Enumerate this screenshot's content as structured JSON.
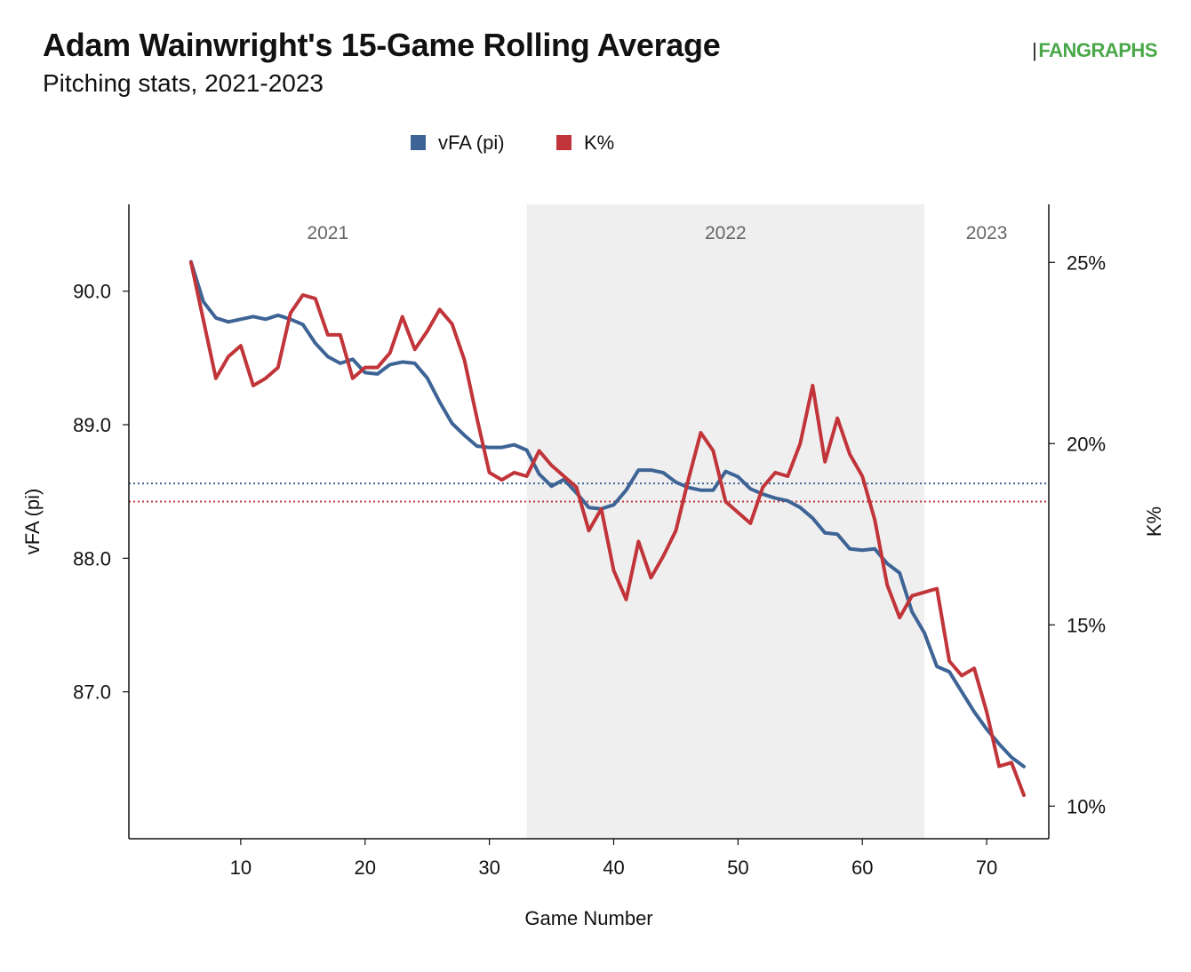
{
  "header": {
    "title": "Adam Wainwright's 15-Game Rolling Average",
    "subtitle": "Pitching stats, 2021-2023",
    "brand": "FANGRAPHS",
    "brand_mark": "|"
  },
  "colors": {
    "vfa": "#3e6496",
    "kpct": "#c1353a",
    "era_band": "#efefef",
    "axis": "#111111"
  },
  "chart_data": {
    "type": "line",
    "xlabel": "Game Number",
    "ylabel_left": "vFA (pi)",
    "ylabel_right": "K%",
    "xlim": [
      1,
      75
    ],
    "ylim_left": [
      85.9,
      90.65
    ],
    "ylim_right": [
      9.1,
      26.6
    ],
    "x_ticks": [
      10,
      20,
      30,
      40,
      50,
      60,
      70
    ],
    "y_ticks_left": [
      "87.0",
      "88.0",
      "89.0",
      "90.0"
    ],
    "y_ticks_right": [
      "10%",
      "15%",
      "20%",
      "25%"
    ],
    "legend": {
      "position": "top-center",
      "entries": [
        "vFA (pi)",
        "K%"
      ]
    },
    "eras": [
      {
        "label": "2021",
        "start": 1,
        "end": 33,
        "shaded": false
      },
      {
        "label": "2022",
        "start": 33,
        "end": 65,
        "shaded": true
      },
      {
        "label": "2023",
        "start": 65,
        "end": 75,
        "shaded": false
      }
    ],
    "reference_lines": [
      {
        "series": "vFA (pi)",
        "axis": "left",
        "value": 88.56
      },
      {
        "series": "K%",
        "axis": "right",
        "value": 18.4
      }
    ],
    "series": [
      {
        "name": "vFA (pi)",
        "axis": "left",
        "x": [
          6,
          7,
          8,
          9,
          10,
          11,
          12,
          13,
          14,
          15,
          16,
          17,
          18,
          19,
          20,
          21,
          22,
          23,
          24,
          25,
          26,
          27,
          28,
          29,
          30,
          31,
          32,
          33,
          34,
          35,
          36,
          37,
          38,
          39,
          40,
          41,
          42,
          43,
          44,
          45,
          46,
          47,
          48,
          49,
          50,
          51,
          52,
          53,
          54,
          55,
          56,
          57,
          58,
          59,
          60,
          61,
          62,
          63,
          64,
          65,
          66,
          67,
          68,
          69,
          70,
          71,
          72,
          73
        ],
        "values": [
          90.22,
          89.92,
          89.8,
          89.77,
          89.79,
          89.81,
          89.79,
          89.82,
          89.79,
          89.75,
          89.61,
          89.51,
          89.46,
          89.49,
          89.39,
          89.38,
          89.45,
          89.47,
          89.46,
          89.35,
          89.17,
          89.01,
          88.92,
          88.84,
          88.83,
          88.83,
          88.85,
          88.81,
          88.63,
          88.54,
          88.59,
          88.49,
          88.38,
          88.37,
          88.4,
          88.51,
          88.66,
          88.66,
          88.64,
          88.57,
          88.53,
          88.51,
          88.51,
          88.65,
          88.61,
          88.52,
          88.48,
          88.45,
          88.43,
          88.38,
          88.3,
          88.19,
          88.18,
          88.07,
          88.06,
          88.07,
          87.96,
          87.89,
          87.6,
          87.44,
          87.19,
          87.15,
          87.0,
          86.85,
          86.72,
          86.61,
          86.51,
          86.44
        ]
      },
      {
        "name": "K%",
        "axis": "right",
        "x": [
          6,
          7,
          8,
          9,
          10,
          11,
          12,
          13,
          14,
          15,
          16,
          17,
          18,
          19,
          20,
          21,
          22,
          23,
          24,
          25,
          26,
          27,
          28,
          29,
          30,
          31,
          32,
          33,
          34,
          35,
          36,
          37,
          38,
          39,
          40,
          41,
          42,
          43,
          44,
          45,
          46,
          47,
          48,
          49,
          50,
          51,
          52,
          53,
          54,
          55,
          56,
          57,
          58,
          59,
          60,
          61,
          62,
          63,
          64,
          65,
          66,
          67,
          68,
          69,
          70,
          71,
          72,
          73
        ],
        "values": [
          25.0,
          23.4,
          21.8,
          22.4,
          22.7,
          21.6,
          21.8,
          22.1,
          23.6,
          24.1,
          24.0,
          23.0,
          23.0,
          21.8,
          22.1,
          22.1,
          22.5,
          23.5,
          22.6,
          23.1,
          23.7,
          23.3,
          22.3,
          20.7,
          19.2,
          19.0,
          19.2,
          19.1,
          19.8,
          19.4,
          19.1,
          18.8,
          17.6,
          18.2,
          16.5,
          15.7,
          17.3,
          16.3,
          16.9,
          17.6,
          19.0,
          20.3,
          19.8,
          18.4,
          18.1,
          17.8,
          18.8,
          19.2,
          19.1,
          20.0,
          21.6,
          19.5,
          20.7,
          19.7,
          19.1,
          17.9,
          16.1,
          15.2,
          15.8,
          15.9,
          16.0,
          14.0,
          13.6,
          13.8,
          12.6,
          11.1,
          11.2,
          10.3
        ]
      }
    ]
  }
}
